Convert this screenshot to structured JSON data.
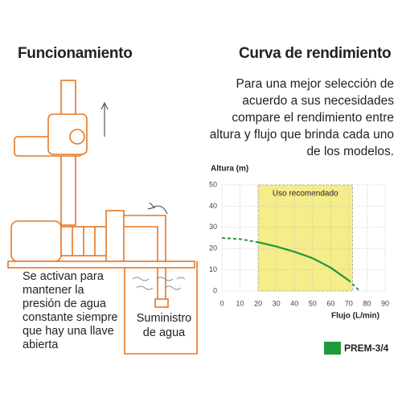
{
  "left": {
    "title": "Funcionamiento",
    "caption": "Se activan para mantener la presión de agua constante siempre que hay una llave abierta",
    "supply_label": "Suministro de agua"
  },
  "right": {
    "title": "Curva de rendimiento",
    "description": "Para una mejor selección de acuerdo a sus necesidades compare el rendimiento entre altura y flujo que brinda cada uno de los modelos."
  },
  "chart_data": {
    "type": "line",
    "x_label": "Flujo (L/min)",
    "y_label": "Altura (m)",
    "x": [
      0,
      10,
      20,
      30,
      40,
      50,
      60,
      70,
      76
    ],
    "series": [
      {
        "name": "PREM-3/4",
        "color": "#1e9a3c",
        "values": [
          25,
          24.5,
          23,
          21,
          18.5,
          15.5,
          11,
          5,
          0
        ]
      }
    ],
    "xlim": [
      0,
      90
    ],
    "xticks": [
      0,
      10,
      20,
      30,
      40,
      50,
      60,
      70,
      80,
      90
    ],
    "ylim": [
      0,
      50
    ],
    "yticks": [
      0,
      10,
      20,
      30,
      40,
      50
    ],
    "grid": true,
    "region": {
      "label": "Uso recomendado",
      "xlim": [
        20,
        72
      ],
      "color": "#f5ec8a"
    }
  }
}
